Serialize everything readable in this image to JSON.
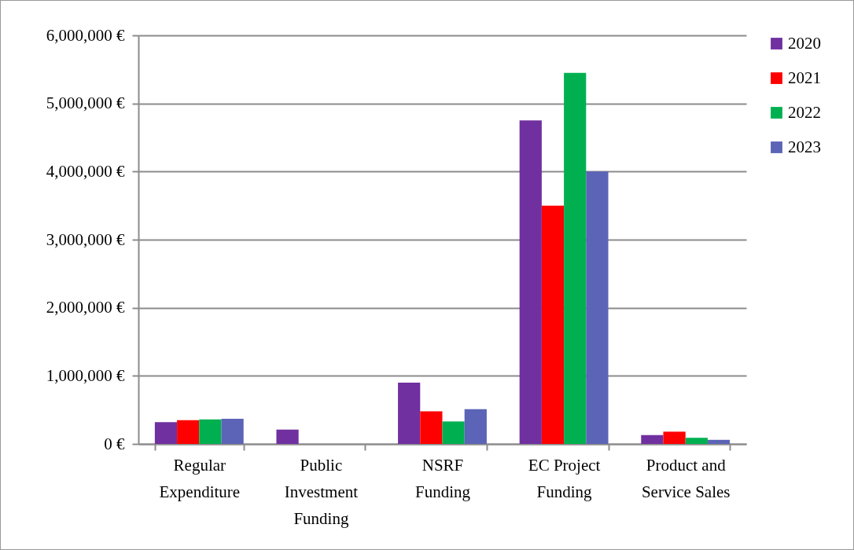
{
  "chart_data": {
    "type": "bar",
    "categories": [
      "Regular Expenditure",
      "Public Investment Funding",
      "NSRF Funding",
      "EC Project Funding",
      "Product and Service Sales"
    ],
    "series": [
      {
        "name": "2020",
        "color": "#7030a0",
        "values": [
          320000,
          210000,
          900000,
          4750000,
          130000
        ]
      },
      {
        "name": "2021",
        "color": "#ff0000",
        "values": [
          350000,
          0,
          480000,
          3500000,
          180000
        ]
      },
      {
        "name": "2022",
        "color": "#00b050",
        "values": [
          360000,
          0,
          330000,
          5450000,
          90000
        ]
      },
      {
        "name": "2023",
        "color": "#5b64b6",
        "values": [
          370000,
          0,
          510000,
          4000000,
          60000
        ]
      }
    ],
    "ylim": [
      0,
      6000000
    ],
    "yticks": [
      {
        "value": 0,
        "label": "0 €"
      },
      {
        "value": 1000000,
        "label": "1,000,000 €"
      },
      {
        "value": 2000000,
        "label": "2,000,000 €"
      },
      {
        "value": 3000000,
        "label": "3,000,000 €"
      },
      {
        "value": 4000000,
        "label": "4,000,000 €"
      },
      {
        "value": 5000000,
        "label": "5,000,000 €"
      },
      {
        "value": 6000000,
        "label": "6,000,000 €"
      }
    ],
    "grid": "y",
    "legend": "right"
  }
}
